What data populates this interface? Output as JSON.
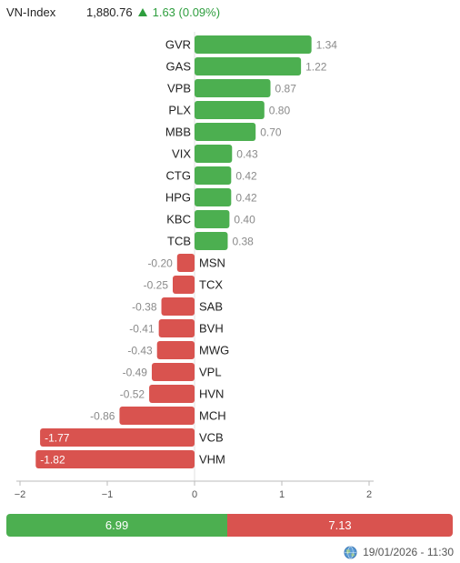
{
  "header": {
    "index_name": "VN-Index",
    "index_value": "1,880.76",
    "index_change": "1.63 (0.09%)",
    "change_icon": "up-triangle-icon"
  },
  "colors": {
    "positive": "#4caf50",
    "negative": "#d9534f",
    "change_text": "#2e9e3e"
  },
  "chart_data": {
    "type": "bar",
    "orientation": "horizontal",
    "categories": [
      "GVR",
      "GAS",
      "VPB",
      "PLX",
      "MBB",
      "VIX",
      "CTG",
      "HPG",
      "KBC",
      "TCB",
      "MSN",
      "TCX",
      "SAB",
      "BVH",
      "MWG",
      "VPL",
      "HVN",
      "MCH",
      "VCB",
      "VHM"
    ],
    "values": [
      1.34,
      1.22,
      0.87,
      0.8,
      0.7,
      0.43,
      0.42,
      0.42,
      0.4,
      0.38,
      -0.2,
      -0.25,
      -0.38,
      -0.41,
      -0.43,
      -0.49,
      -0.52,
      -0.86,
      -1.77,
      -1.82
    ],
    "xlim": [
      -2,
      2
    ],
    "xticks": [
      -2,
      -1,
      0,
      1,
      2
    ],
    "xtick_labels": [
      "−2",
      "−1",
      "0",
      "1",
      "2"
    ],
    "grid": false
  },
  "summary": {
    "positive_value": 6.99,
    "negative_value": 7.13,
    "positive_label": "6.99",
    "negative_label": "7.13"
  },
  "footer": {
    "timestamp": "19/01/2026 - 11:30",
    "icon": "globe-icon"
  }
}
